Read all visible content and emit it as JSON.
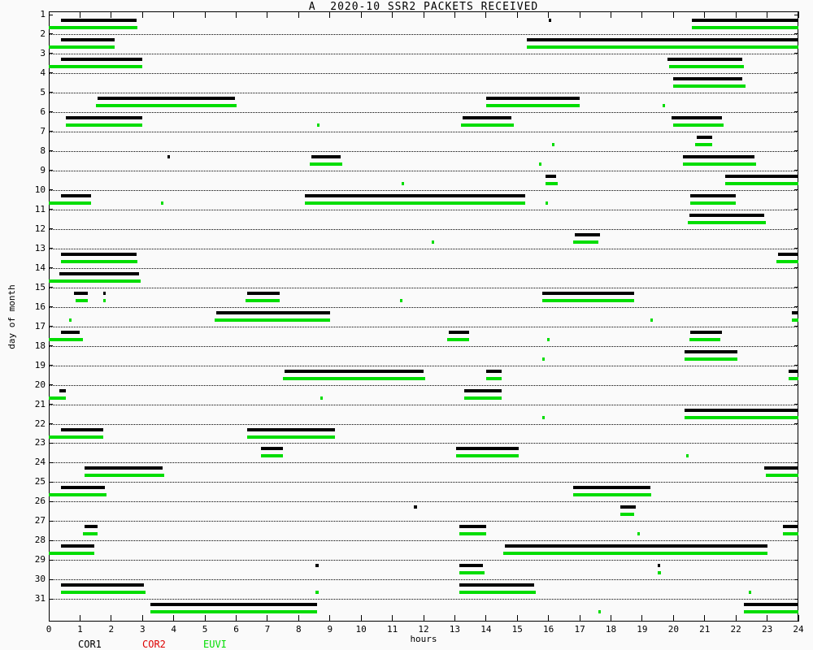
{
  "title": "A  2020-10 SSR2 PACKETS RECEIVED",
  "axes": {
    "xlabel": "hours",
    "ylabel": "day of month"
  },
  "legend": [
    {
      "label": "COR1",
      "color": "#000000"
    },
    {
      "label": "COR2",
      "color": "#dd0000"
    },
    {
      "label": "EUVI",
      "color": "#00dd00"
    }
  ],
  "chart_data": {
    "type": "bar",
    "subtype": "daily-time-coverage-timeline",
    "title": "A  2020-10 SSR2 PACKETS RECEIVED",
    "xlabel": "hours",
    "ylabel": "day of month",
    "xlim": [
      0,
      24
    ],
    "ylim": [
      1,
      31
    ],
    "grid": "dotted-horizontal-per-day",
    "legend_position": "bottom-left",
    "x_ticks": [
      0,
      1,
      2,
      3,
      4,
      5,
      6,
      7,
      8,
      9,
      10,
      11,
      12,
      13,
      14,
      15,
      16,
      17,
      18,
      19,
      20,
      21,
      22,
      23,
      24
    ],
    "y_ticks": [
      1,
      2,
      3,
      4,
      5,
      6,
      7,
      8,
      9,
      10,
      11,
      12,
      13,
      14,
      15,
      16,
      17,
      18,
      19,
      20,
      21,
      22,
      23,
      24,
      25,
      26,
      27,
      28,
      29,
      30,
      31
    ],
    "series": [
      {
        "name": "COR1",
        "color": "#000000",
        "rows": {
          "1": [
            [
              0.4,
              2.8
            ],
            [
              16.0,
              16.1
            ],
            [
              20.6,
              24
            ]
          ],
          "2": [
            [
              0.4,
              2.1
            ],
            [
              15.3,
              24
            ]
          ],
          "3": [
            [
              0.4,
              3.0
            ],
            [
              19.8,
              22.2
            ]
          ],
          "4": [
            [
              20.0,
              22.2
            ]
          ],
          "5": [
            [
              1.55,
              5.95
            ],
            [
              14.0,
              17.0
            ]
          ],
          "6": [
            [
              0.55,
              3.0
            ],
            [
              13.25,
              14.8
            ],
            [
              19.95,
              21.55
            ]
          ],
          "7": [
            [
              20.75,
              21.25
            ]
          ],
          "8": [
            [
              3.8,
              3.88
            ],
            [
              8.4,
              9.35
            ],
            [
              20.3,
              22.6
            ]
          ],
          "9": [
            [
              15.9,
              16.25
            ],
            [
              21.65,
              24
            ]
          ],
          "10": [
            [
              0.4,
              1.35
            ],
            [
              8.2,
              15.25
            ],
            [
              20.55,
              22.0
            ]
          ],
          "11": [
            [
              20.5,
              22.9
            ]
          ],
          "12": [
            [
              16.85,
              17.65
            ]
          ],
          "13": [
            [
              0.4,
              2.8
            ],
            [
              23.35,
              24
            ]
          ],
          "14": [
            [
              0.35,
              2.9
            ]
          ],
          "15": [
            [
              0.8,
              1.25
            ],
            [
              1.75,
              1.82
            ],
            [
              6.35,
              7.4
            ],
            [
              15.8,
              18.75
            ]
          ],
          "16": [
            [
              5.35,
              9.0
            ],
            [
              23.8,
              24
            ]
          ],
          "17": [
            [
              0.4,
              1.0
            ],
            [
              12.8,
              13.45
            ],
            [
              20.55,
              21.55
            ]
          ],
          "18": [
            [
              20.35,
              22.05
            ]
          ],
          "19": [
            [
              7.55,
              12.0
            ],
            [
              14.0,
              14.5
            ],
            [
              23.7,
              24
            ]
          ],
          "20": [
            [
              0.35,
              0.55
            ],
            [
              13.3,
              14.5
            ]
          ],
          "21": [
            [
              20.35,
              24
            ]
          ],
          "22": [
            [
              0.4,
              1.75
            ],
            [
              6.35,
              9.15
            ]
          ],
          "23": [
            [
              6.8,
              7.5
            ],
            [
              13.05,
              15.05
            ]
          ],
          "24": [
            [
              1.15,
              3.65
            ],
            [
              22.9,
              24
            ]
          ],
          "25": [
            [
              0.4,
              1.8
            ],
            [
              16.8,
              19.25
            ]
          ],
          "26": [
            [
              11.7,
              11.78
            ],
            [
              18.3,
              18.8
            ]
          ],
          "27": [
            [
              1.15,
              1.55
            ],
            [
              13.15,
              14.0
            ],
            [
              23.5,
              24
            ]
          ],
          "28": [
            [
              0.4,
              1.45
            ],
            [
              14.6,
              23.0
            ]
          ],
          "29": [
            [
              8.55,
              8.63
            ],
            [
              13.15,
              13.9
            ],
            [
              19.5,
              19.58
            ]
          ],
          "30": [
            [
              0.4,
              3.05
            ],
            [
              13.15,
              15.55
            ]
          ],
          "31": [
            [
              3.25,
              8.6
            ],
            [
              22.25,
              24
            ]
          ]
        }
      },
      {
        "name": "COR2",
        "color": "#dd0000",
        "rows": {}
      },
      {
        "name": "EUVI",
        "color": "#00dd00",
        "rows": {
          "1": [
            [
              0,
              2.85
            ],
            [
              20.6,
              24
            ]
          ],
          "2": [
            [
              0,
              2.1
            ],
            [
              15.3,
              24
            ]
          ],
          "3": [
            [
              0,
              3.0
            ],
            [
              19.85,
              22.25
            ]
          ],
          "4": [
            [
              20.0,
              22.3
            ]
          ],
          "5": [
            [
              1.5,
              6.0
            ],
            [
              14.0,
              17.0
            ],
            [
              19.65,
              19.73
            ]
          ],
          "6": [
            [
              0.55,
              3.0
            ],
            [
              8.6,
              8.68
            ],
            [
              13.2,
              14.9
            ],
            [
              20.0,
              21.6
            ]
          ],
          "7": [
            [
              16.1,
              16.18
            ],
            [
              20.7,
              21.25
            ]
          ],
          "8": [
            [
              8.35,
              9.4
            ],
            [
              15.7,
              15.78
            ],
            [
              20.3,
              22.65
            ]
          ],
          "9": [
            [
              11.3,
              11.38
            ],
            [
              15.9,
              16.3
            ],
            [
              21.65,
              24
            ]
          ],
          "10": [
            [
              0,
              1.35
            ],
            [
              3.6,
              3.68
            ],
            [
              8.2,
              15.25
            ],
            [
              15.9,
              15.98
            ],
            [
              20.55,
              22.0
            ]
          ],
          "11": [
            [
              20.45,
              22.95
            ]
          ],
          "12": [
            [
              12.25,
              12.33
            ],
            [
              16.8,
              17.6
            ]
          ],
          "13": [
            [
              0.4,
              2.85
            ],
            [
              23.3,
              24
            ]
          ],
          "14": [
            [
              0,
              2.95
            ]
          ],
          "15": [
            [
              0.85,
              1.25
            ],
            [
              1.75,
              1.82
            ],
            [
              6.3,
              7.4
            ],
            [
              11.25,
              11.33
            ],
            [
              15.8,
              18.75
            ]
          ],
          "16": [
            [
              0.65,
              0.73
            ],
            [
              5.3,
              9.0
            ],
            [
              19.25,
              19.33
            ],
            [
              23.8,
              24
            ]
          ],
          "17": [
            [
              0,
              1.1
            ],
            [
              12.75,
              13.45
            ],
            [
              15.95,
              16.03
            ],
            [
              20.5,
              21.5
            ]
          ],
          "18": [
            [
              15.8,
              15.88
            ],
            [
              20.35,
              22.05
            ]
          ],
          "19": [
            [
              7.5,
              12.05
            ],
            [
              14.0,
              14.5
            ],
            [
              23.7,
              24
            ]
          ],
          "20": [
            [
              0,
              0.55
            ],
            [
              8.7,
              8.78
            ],
            [
              13.3,
              14.5
            ]
          ],
          "21": [
            [
              15.8,
              15.88
            ],
            [
              20.35,
              24
            ]
          ],
          "22": [
            [
              0,
              1.75
            ],
            [
              6.35,
              9.15
            ]
          ],
          "23": [
            [
              6.8,
              7.5
            ],
            [
              13.05,
              15.05
            ],
            [
              20.4,
              20.48
            ]
          ],
          "24": [
            [
              1.15,
              3.7
            ],
            [
              22.95,
              24
            ]
          ],
          "25": [
            [
              0,
              1.85
            ],
            [
              16.8,
              19.3
            ]
          ],
          "26": [
            [
              18.3,
              18.75
            ]
          ],
          "27": [
            [
              1.1,
              1.55
            ],
            [
              13.15,
              14.0
            ],
            [
              18.85,
              18.93
            ],
            [
              23.5,
              24
            ]
          ],
          "28": [
            [
              0,
              1.45
            ],
            [
              14.55,
              23.0
            ]
          ],
          "29": [
            [
              13.15,
              13.95
            ],
            [
              19.5,
              19.6
            ]
          ],
          "30": [
            [
              0.4,
              3.1
            ],
            [
              8.55,
              8.63
            ],
            [
              13.15,
              15.6
            ],
            [
              22.4,
              22.48
            ]
          ],
          "31": [
            [
              3.25,
              8.6
            ],
            [
              17.6,
              17.68
            ],
            [
              22.25,
              24
            ]
          ]
        }
      }
    ]
  }
}
